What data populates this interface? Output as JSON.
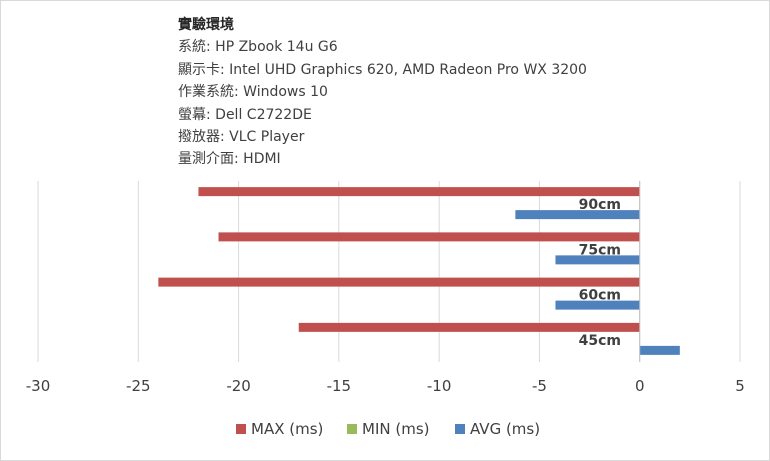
{
  "info": {
    "title": "實驗環境",
    "lines": [
      "系統: HP Zbook 14u G6",
      "顯示卡: Intel UHD Graphics 620, AMD Radeon Pro WX 3200",
      "作業系統: Windows 10",
      "螢幕: Dell C2722DE",
      "撥放器: VLC Player",
      "量測介面: HDMI"
    ]
  },
  "chart_data": {
    "type": "bar",
    "orientation": "horizontal",
    "title": "",
    "xlabel": "",
    "ylabel": "",
    "categories": [
      "90cm",
      "75cm",
      "60cm",
      "45cm"
    ],
    "series": [
      {
        "name": "MAX (ms)",
        "color": "#c0504d",
        "values": [
          -22,
          -21,
          -24,
          -17
        ]
      },
      {
        "name": "MIN (ms)",
        "color": "#9bbb59",
        "values": [
          0,
          0,
          0,
          0
        ]
      },
      {
        "name": "AVG (ms)",
        "color": "#4f81bd",
        "values": [
          -6.2,
          -4.2,
          -4.2,
          2
        ]
      }
    ],
    "xlim": [
      -30,
      5
    ],
    "xticks": [
      -30,
      -25,
      -20,
      -15,
      -10,
      -5,
      0,
      5
    ],
    "grid": "vertical",
    "legend": "bottom"
  }
}
